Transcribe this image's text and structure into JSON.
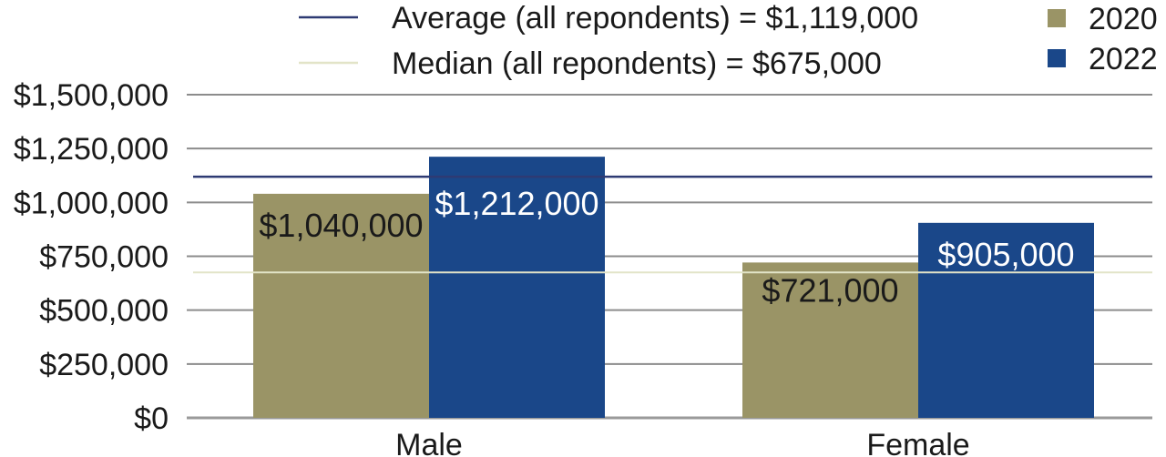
{
  "chart_data": {
    "type": "bar",
    "title": "",
    "xlabel": "",
    "ylabel": "",
    "categories": [
      "Male",
      "Female"
    ],
    "series": [
      {
        "name": "2020",
        "values": [
          1040000,
          721000
        ],
        "labels": [
          "$1,040,000",
          "$721,000"
        ],
        "color": "#9a9466",
        "label_color": "#1a1a1a"
      },
      {
        "name": "2022",
        "values": [
          1212000,
          905000
        ],
        "labels": [
          "$1,212,000",
          "$905,000"
        ],
        "color": "#1a4789",
        "label_color": "#ffffff"
      }
    ],
    "ylim": [
      0,
      1500000
    ],
    "yticks": [
      0,
      250000,
      500000,
      750000,
      1000000,
      1250000,
      1500000
    ],
    "ytick_labels": [
      "$0",
      "$250,000",
      "$500,000",
      "$750,000",
      "$1,000,000",
      "$1,250,000",
      "$1,500,000"
    ],
    "grid": true,
    "reference_lines": [
      {
        "name": "Average (all repondents) = $1,119,000",
        "value": 1119000,
        "color": "#2e3a73"
      },
      {
        "name": "Median (all repondents) = $675,000",
        "value": 675000,
        "color": "#e2e4c8"
      }
    ],
    "legend_position": "top"
  }
}
